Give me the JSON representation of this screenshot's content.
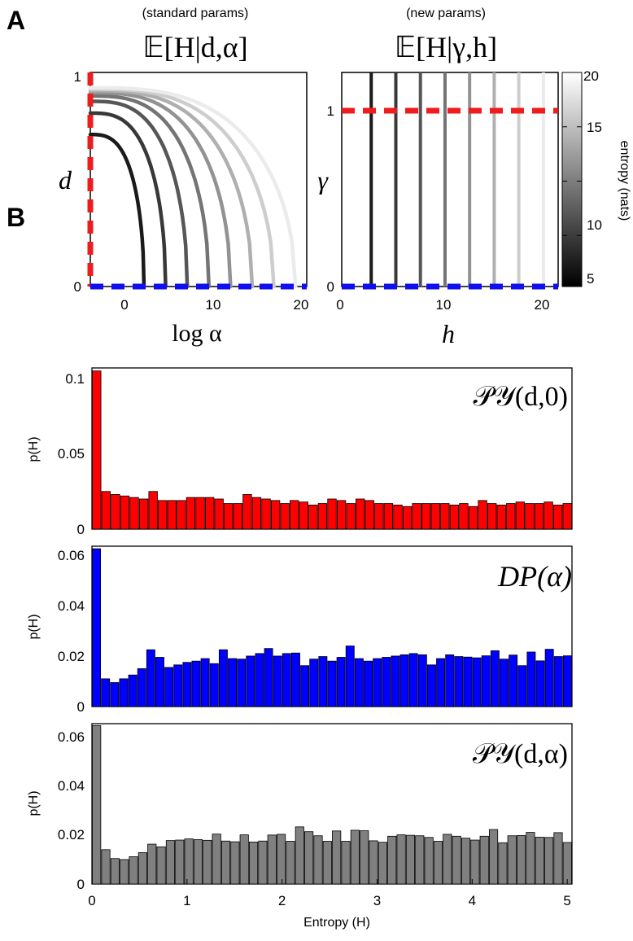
{
  "panels": {
    "a": "A",
    "b": "B"
  },
  "panel_a": {
    "left": {
      "subtitle": "(standard params)",
      "title": "𝔼[H|d,α]",
      "xlabel": "log α",
      "ylabel": "d",
      "xticks": [
        "0",
        "10",
        "20"
      ],
      "yticks": [
        "0",
        "1"
      ],
      "xlim": [
        -4,
        21
      ],
      "ylim": [
        0,
        1
      ]
    },
    "right": {
      "subtitle": "(new params)",
      "title": "𝔼[H|γ,h]",
      "xlabel": "h",
      "ylabel": "γ",
      "xticks": [
        "0",
        "10",
        "20"
      ],
      "yticks": [
        "0",
        "1"
      ],
      "xlim": [
        -0.5,
        21.5
      ],
      "ylim": [
        0,
        1.3
      ]
    },
    "colorbar": {
      "label": "entropy (nats)",
      "ticks": [
        "5",
        "10",
        "15",
        "20"
      ],
      "range": [
        0.3,
        20
      ]
    },
    "colors": {
      "red": "#ee1c1c",
      "blue": "#1010ee"
    }
  },
  "chart_data": [
    {
      "type": "line",
      "subtitle": "(standard params)",
      "title": "𝔼[H|d,α]",
      "xlabel": "log α",
      "ylabel": "d",
      "xlim": [
        -4,
        21
      ],
      "ylim": [
        0,
        1
      ],
      "series": [
        {
          "entropy": 2.5,
          "x_end": 2.2,
          "d_max": 0.71
        },
        {
          "entropy": 5,
          "x_end": 4.7,
          "d_max": 0.81
        },
        {
          "entropy": 7.5,
          "x_end": 7.2,
          "d_max": 0.865
        },
        {
          "entropy": 10,
          "x_end": 9.7,
          "d_max": 0.89
        },
        {
          "entropy": 12.5,
          "x_end": 12.2,
          "d_max": 0.905
        },
        {
          "entropy": 15,
          "x_end": 14.7,
          "d_max": 0.915
        },
        {
          "entropy": 17.5,
          "x_end": 17.2,
          "d_max": 0.922
        },
        {
          "entropy": 20,
          "x_end": 19.7,
          "d_max": 0.928
        }
      ]
    },
    {
      "type": "line",
      "subtitle": "(new params)",
      "title": "𝔼[H|γ,h]",
      "xlabel": "h",
      "ylabel": "γ",
      "xlim": [
        -0.5,
        21.5
      ],
      "ylim": [
        0,
        1.3
      ],
      "series": [
        {
          "entropy": 2.5,
          "h": 2.5
        },
        {
          "entropy": 5,
          "h": 5
        },
        {
          "entropy": 7.5,
          "h": 7.5
        },
        {
          "entropy": 10,
          "h": 10
        },
        {
          "entropy": 12.5,
          "h": 12.5
        },
        {
          "entropy": 15,
          "h": 15
        },
        {
          "entropy": 17.5,
          "h": 17.5
        },
        {
          "entropy": 20,
          "h": 20
        }
      ],
      "reference_lines": {
        "red_gamma": 1,
        "blue_gamma": 0
      }
    },
    {
      "type": "bar",
      "series_label": "𝒫𝒴(d,0)",
      "ylabel": "p(H)",
      "yticks": [
        "0",
        "0.05",
        "0.1"
      ],
      "ylim": [
        0,
        0.107
      ],
      "color": "#ff0000",
      "label_color": "#ee1c1c",
      "values": [
        0.105,
        0.025,
        0.023,
        0.022,
        0.021,
        0.02,
        0.025,
        0.019,
        0.019,
        0.019,
        0.021,
        0.021,
        0.021,
        0.02,
        0.017,
        0.017,
        0.023,
        0.021,
        0.02,
        0.019,
        0.017,
        0.019,
        0.018,
        0.016,
        0.017,
        0.02,
        0.019,
        0.017,
        0.02,
        0.019,
        0.017,
        0.017,
        0.016,
        0.015,
        0.017,
        0.017,
        0.017,
        0.017,
        0.016,
        0.017,
        0.015,
        0.019,
        0.017,
        0.016,
        0.017,
        0.018,
        0.017,
        0.017,
        0.018,
        0.016,
        0.017
      ]
    },
    {
      "type": "bar",
      "series_label": "DP(α)",
      "ylabel": "p(H)",
      "yticks": [
        "0",
        "0.02",
        "0.04",
        "0.06"
      ],
      "ylim": [
        0,
        0.0635
      ],
      "color": "#0000ff",
      "label_color": "#1010ee",
      "values": [
        0.0625,
        0.011,
        0.0095,
        0.011,
        0.0125,
        0.015,
        0.0225,
        0.0195,
        0.0155,
        0.0165,
        0.0175,
        0.018,
        0.019,
        0.017,
        0.0225,
        0.019,
        0.0188,
        0.02,
        0.021,
        0.023,
        0.02,
        0.021,
        0.0212,
        0.0162,
        0.0188,
        0.0198,
        0.018,
        0.0195,
        0.024,
        0.019,
        0.018,
        0.019,
        0.0195,
        0.02,
        0.0205,
        0.021,
        0.0205,
        0.0165,
        0.019,
        0.0205,
        0.0198,
        0.0196,
        0.0193,
        0.0201,
        0.0221,
        0.0188,
        0.0204,
        0.0162,
        0.0216,
        0.0181,
        0.0227,
        0.0198,
        0.0201
      ]
    },
    {
      "type": "bar",
      "series_label": "𝒫𝒴(d,α)",
      "ylabel": "p(H)",
      "xlabel": "Entropy (H)",
      "xticks": [
        "0",
        "1",
        "2",
        "3",
        "4",
        "5"
      ],
      "yticks": [
        "0",
        "0.02",
        "0.04",
        "0.06"
      ],
      "ylim": [
        0,
        0.0668
      ],
      "xlim": [
        0,
        5.05
      ],
      "color": "#808080",
      "label_color": "#999999",
      "values": [
        0.066,
        0.0143,
        0.0106,
        0.0102,
        0.0114,
        0.0131,
        0.0166,
        0.0155,
        0.0181,
        0.0183,
        0.0188,
        0.0185,
        0.0182,
        0.0208,
        0.0179,
        0.0176,
        0.0205,
        0.0175,
        0.0179,
        0.0204,
        0.0207,
        0.0178,
        0.0238,
        0.0218,
        0.0201,
        0.0178,
        0.0221,
        0.0178,
        0.0224,
        0.0222,
        0.018,
        0.0174,
        0.0199,
        0.0205,
        0.0203,
        0.0201,
        0.0194,
        0.0178,
        0.0207,
        0.0199,
        0.0191,
        0.0183,
        0.0199,
        0.0227,
        0.0172,
        0.0201,
        0.0202,
        0.0215,
        0.0195,
        0.0194,
        0.0214,
        0.0173
      ]
    }
  ]
}
